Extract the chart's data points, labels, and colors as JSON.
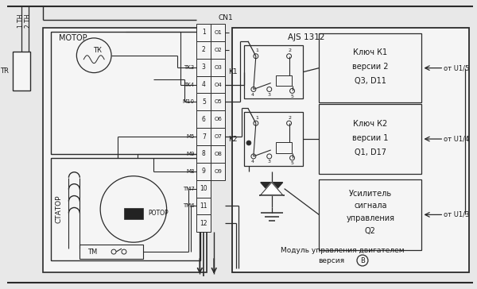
{
  "bg_color": "#e8e8e8",
  "line_color": "#2a2a2a",
  "box_color": "#f5f5f5",
  "text_color": "#1a1a1a",
  "fig_width": 6.0,
  "fig_height": 3.64,
  "labels": {
    "motor_box": "МОТОР",
    "stator_box": "СТАТОР",
    "tr": "TR",
    "1th": "1 ТН",
    "2th": "2 ТН",
    "tk": "ТК",
    "rotor": "РОТОР",
    "tm": "ТМ",
    "cn1": "CN1",
    "ajs": "AJS 1312",
    "k1_box_lines": [
      "Ключ К1",
      "версии 2",
      "Q3, D11"
    ],
    "k2_box_lines": [
      "Ключ К2",
      "версии 1",
      "Q1, D17"
    ],
    "amp_box_lines": [
      "Усилитель",
      "сигнала",
      "управления",
      "Q2"
    ],
    "module_line1": "Модуль управления двигателем",
    "module_line2": "версия",
    "version_b": "B",
    "k1_label": "K1",
    "k2_label": "K2",
    "from_u15": "от U1/5",
    "from_u14": "от U1/4",
    "from_u13": "от U1/3",
    "connector_numbers": [
      "1",
      "2",
      "3",
      "4",
      "5",
      "6",
      "7",
      "8",
      "9",
      "10",
      "11",
      "12"
    ],
    "connector_left": [
      "",
      "",
      "TK3",
      "TK4",
      "M10",
      "",
      "M5",
      "M9",
      "M8",
      "TM7",
      "TM6",
      ""
    ],
    "connector_right": [
      "O1",
      "O2",
      "O3",
      "O4",
      "O5",
      "O6",
      "O7",
      "O8",
      "O9",
      "",
      "",
      ""
    ]
  }
}
